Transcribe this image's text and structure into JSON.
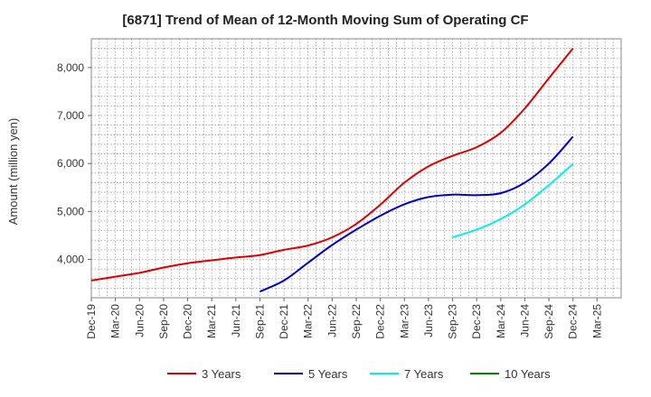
{
  "chart_data": {
    "type": "line",
    "title": "[6871]  Trend of Mean of 12-Month Moving Sum of Operating CF",
    "xlabel": "",
    "ylabel": "Amount (million yen)",
    "ylim": [
      3200,
      8600
    ],
    "yticks": [
      4000,
      5000,
      6000,
      7000,
      8000
    ],
    "ytick_labels": [
      "4,000",
      "5,000",
      "6,000",
      "7,000",
      "8,000"
    ],
    "x_categories": [
      "Dec-19",
      "Mar-20",
      "Jun-20",
      "Sep-20",
      "Dec-20",
      "Mar-21",
      "Jun-21",
      "Sep-21",
      "Dec-21",
      "Mar-22",
      "Jun-22",
      "Sep-22",
      "Dec-22",
      "Mar-23",
      "Jun-23",
      "Sep-23",
      "Dec-23",
      "Mar-24",
      "Jun-24",
      "Sep-24",
      "Dec-24",
      "Mar-25"
    ],
    "grid": true,
    "legend_position": "bottom",
    "series": [
      {
        "name": "3 Years",
        "color": "#dd0000",
        "points": [
          [
            0,
            3560
          ],
          [
            1,
            3640
          ],
          [
            2,
            3720
          ],
          [
            3,
            3830
          ],
          [
            4,
            3920
          ],
          [
            5,
            3980
          ],
          [
            6,
            4040
          ],
          [
            7,
            4090
          ],
          [
            8,
            4200
          ],
          [
            9,
            4290
          ],
          [
            10,
            4460
          ],
          [
            11,
            4740
          ],
          [
            12,
            5140
          ],
          [
            13,
            5600
          ],
          [
            14,
            5940
          ],
          [
            15,
            6160
          ],
          [
            16,
            6340
          ],
          [
            17,
            6640
          ],
          [
            18,
            7150
          ],
          [
            19,
            7780
          ],
          [
            20,
            8400
          ]
        ]
      },
      {
        "name": "5 Years",
        "color": "#0000cc",
        "points": [
          [
            7,
            3330
          ],
          [
            8,
            3560
          ],
          [
            9,
            3930
          ],
          [
            10,
            4300
          ],
          [
            11,
            4620
          ],
          [
            12,
            4910
          ],
          [
            13,
            5150
          ],
          [
            14,
            5300
          ],
          [
            15,
            5350
          ],
          [
            16,
            5340
          ],
          [
            17,
            5380
          ],
          [
            18,
            5600
          ],
          [
            19,
            6000
          ],
          [
            20,
            6560
          ]
        ]
      },
      {
        "name": "7 Years",
        "color": "#00eeee",
        "points": [
          [
            15,
            4460
          ],
          [
            16,
            4620
          ],
          [
            17,
            4840
          ],
          [
            18,
            5150
          ],
          [
            19,
            5550
          ],
          [
            20,
            5990
          ]
        ]
      },
      {
        "name": "10 Years",
        "color": "#008800",
        "points": []
      }
    ]
  }
}
